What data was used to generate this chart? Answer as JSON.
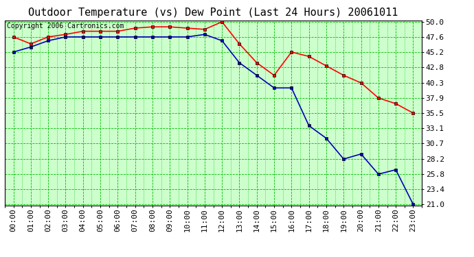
{
  "title": "Outdoor Temperature (vs) Dew Point (Last 24 Hours) 20061011",
  "copyright": "Copyright 2006 Cartronics.com",
  "hours": [
    "00:00",
    "01:00",
    "02:00",
    "03:00",
    "04:00",
    "05:00",
    "06:00",
    "07:00",
    "08:00",
    "09:00",
    "10:00",
    "11:00",
    "12:00",
    "13:00",
    "14:00",
    "15:00",
    "16:00",
    "17:00",
    "18:00",
    "19:00",
    "20:00",
    "21:00",
    "22:00",
    "23:00"
  ],
  "temp": [
    47.6,
    46.5,
    47.6,
    48.0,
    48.5,
    48.5,
    48.5,
    49.0,
    49.2,
    49.2,
    49.0,
    48.8,
    50.0,
    46.5,
    43.5,
    41.5,
    45.2,
    44.5,
    43.0,
    41.5,
    40.3,
    37.9,
    37.0,
    35.5
  ],
  "dew": [
    45.2,
    46.0,
    47.0,
    47.6,
    47.6,
    47.6,
    47.6,
    47.6,
    47.6,
    47.6,
    47.6,
    48.0,
    47.0,
    43.5,
    41.5,
    39.5,
    39.5,
    33.5,
    31.5,
    28.2,
    29.0,
    25.8,
    26.5,
    21.0
  ],
  "yticks": [
    21.0,
    23.4,
    25.8,
    28.2,
    30.7,
    33.1,
    35.5,
    37.9,
    40.3,
    42.8,
    45.2,
    47.6,
    50.0
  ],
  "ymin": 21.0,
  "ymax": 50.0,
  "temp_color": "#ff0000",
  "dew_color": "#0000bb",
  "bg_color": "#ffffff",
  "plot_bg_color": "#ccffcc",
  "grid_color": "#00bb00",
  "title_color": "#000000",
  "copyright_color": "#000000",
  "title_fontsize": 11,
  "copyright_fontsize": 7,
  "tick_fontsize": 8
}
